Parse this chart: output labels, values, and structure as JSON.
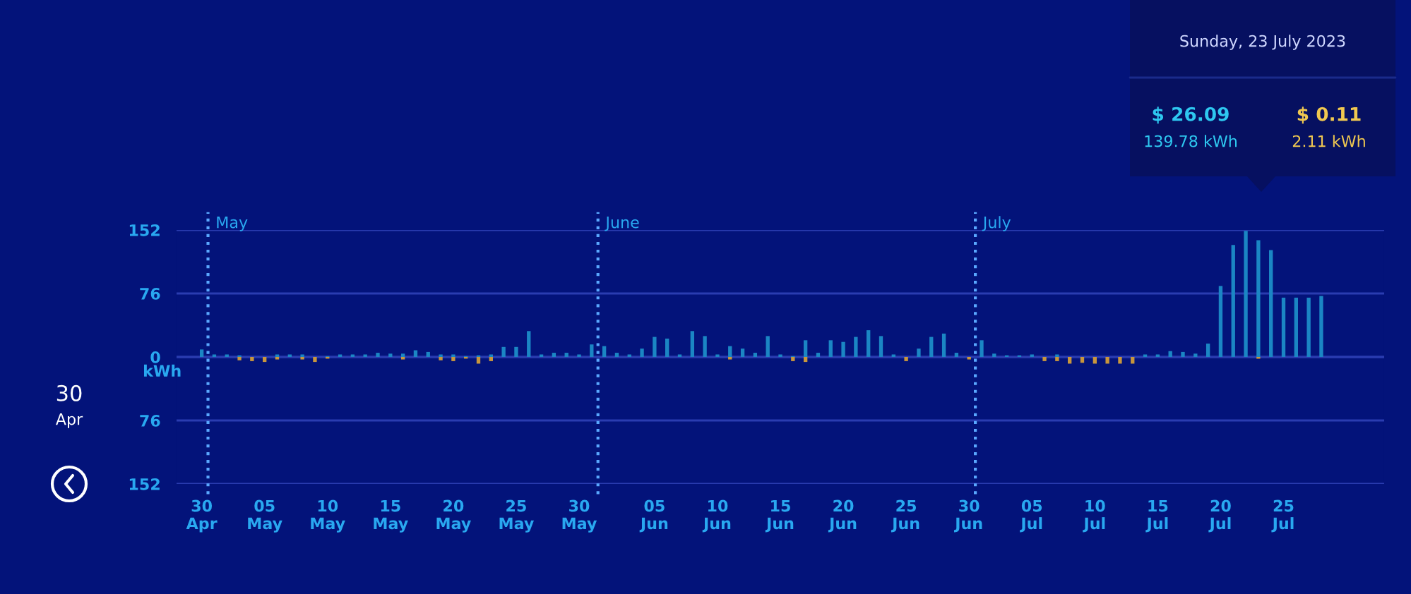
{
  "chart_data": {
    "type": "bar",
    "ylabel": "kWh",
    "x": [
      "2023-04-30",
      "2023-05-01",
      "2023-05-02",
      "2023-05-03",
      "2023-05-04",
      "2023-05-05",
      "2023-05-06",
      "2023-05-07",
      "2023-05-08",
      "2023-05-09",
      "2023-05-10",
      "2023-05-11",
      "2023-05-12",
      "2023-05-13",
      "2023-05-14",
      "2023-05-15",
      "2023-05-16",
      "2023-05-17",
      "2023-05-18",
      "2023-05-19",
      "2023-05-20",
      "2023-05-21",
      "2023-05-22",
      "2023-05-23",
      "2023-05-24",
      "2023-05-25",
      "2023-05-26",
      "2023-05-27",
      "2023-05-28",
      "2023-05-29",
      "2023-05-30",
      "2023-05-31",
      "2023-06-01",
      "2023-06-02",
      "2023-06-03",
      "2023-06-04",
      "2023-06-05",
      "2023-06-06",
      "2023-06-07",
      "2023-06-08",
      "2023-06-09",
      "2023-06-10",
      "2023-06-11",
      "2023-06-12",
      "2023-06-13",
      "2023-06-14",
      "2023-06-15",
      "2023-06-16",
      "2023-06-17",
      "2023-06-18",
      "2023-06-19",
      "2023-06-20",
      "2023-06-21",
      "2023-06-22",
      "2023-06-23",
      "2023-06-24",
      "2023-06-25",
      "2023-06-26",
      "2023-06-27",
      "2023-06-28",
      "2023-06-29",
      "2023-06-30",
      "2023-07-01",
      "2023-07-02",
      "2023-07-03",
      "2023-07-04",
      "2023-07-05",
      "2023-07-06",
      "2023-07-07",
      "2023-07-08",
      "2023-07-09",
      "2023-07-10",
      "2023-07-11",
      "2023-07-12",
      "2023-07-13",
      "2023-07-14",
      "2023-07-15",
      "2023-07-16",
      "2023-07-17",
      "2023-07-18",
      "2023-07-19",
      "2023-07-20",
      "2023-07-21",
      "2023-07-22",
      "2023-07-23",
      "2023-07-24",
      "2023-07-25",
      "2023-07-26",
      "2023-07-27",
      "2023-07-28"
    ],
    "series": [
      {
        "color": "#1b86c4",
        "values": [
          9,
          3,
          3,
          2,
          null,
          null,
          3,
          3,
          3,
          null,
          1,
          3,
          3,
          3,
          5,
          4,
          4,
          8,
          6,
          3,
          3,
          1,
          2,
          3,
          12,
          12,
          31,
          3,
          5,
          5,
          3,
          15,
          13,
          5,
          3,
          10,
          24,
          22,
          3,
          31,
          25,
          3,
          13,
          10,
          5,
          25,
          3,
          1,
          20,
          5,
          20,
          18,
          24,
          32,
          25,
          3,
          null,
          10,
          24,
          28,
          5,
          null,
          20,
          4,
          2,
          2,
          3,
          null,
          3,
          null,
          null,
          null,
          null,
          null,
          null,
          3,
          3,
          7,
          6,
          4,
          16,
          85,
          134,
          151,
          139.78,
          128,
          71,
          71,
          71,
          73
        ]
      },
      {
        "color": "#c8963c",
        "values": [
          null,
          null,
          null,
          -4,
          -5,
          -6,
          -3,
          null,
          -3,
          -6,
          -2,
          null,
          null,
          null,
          null,
          null,
          -3,
          null,
          null,
          -4,
          -5,
          -2,
          -8,
          -5,
          null,
          null,
          null,
          null,
          null,
          null,
          null,
          null,
          null,
          null,
          null,
          null,
          null,
          null,
          null,
          null,
          null,
          null,
          -3,
          null,
          null,
          null,
          null,
          -5,
          -6,
          null,
          null,
          null,
          null,
          null,
          null,
          null,
          -5,
          null,
          null,
          null,
          null,
          -3,
          null,
          null,
          null,
          null,
          null,
          -5,
          -5,
          -8,
          -7,
          -8,
          -8,
          -8,
          -8,
          null,
          null,
          null,
          null,
          null,
          null,
          null,
          null,
          null,
          -2.11,
          null,
          null,
          null,
          null,
          null
        ]
      }
    ],
    "xlim": [
      "2023-04-28",
      "2023-08-02"
    ],
    "xticks": [
      {
        "value": "2023-04-30",
        "label": "30\nApr"
      },
      {
        "value": "2023-05-05",
        "label": "05\nMay"
      },
      {
        "value": "2023-05-10",
        "label": "10\nMay"
      },
      {
        "value": "2023-05-15",
        "label": "15\nMay"
      },
      {
        "value": "2023-05-20",
        "label": "20\nMay"
      },
      {
        "value": "2023-05-25",
        "label": "25\nMay"
      },
      {
        "value": "2023-05-30",
        "label": "30\nMay"
      },
      {
        "value": "2023-06-05",
        "label": "05\nJun"
      },
      {
        "value": "2023-06-10",
        "label": "10\nJun"
      },
      {
        "value": "2023-06-15",
        "label": "15\nJun"
      },
      {
        "value": "2023-06-20",
        "label": "20\nJun"
      },
      {
        "value": "2023-06-25",
        "label": "25\nJun"
      },
      {
        "value": "2023-06-30",
        "label": "30\nJun"
      },
      {
        "value": "2023-07-05",
        "label": "05\nJul"
      },
      {
        "value": "2023-07-10",
        "label": "10\nJul"
      },
      {
        "value": "2023-07-15",
        "label": "15\nJul"
      },
      {
        "value": "2023-07-20",
        "label": "20\nJul"
      },
      {
        "value": "2023-07-25",
        "label": "25\nJul"
      }
    ],
    "ylim": [
      -152,
      152
    ],
    "yticks": [
      {
        "value": -152,
        "label": "152"
      },
      {
        "value": -76,
        "label": "76"
      },
      0,
      76,
      152
    ],
    "grid": "y",
    "ref_lines": [
      {
        "axis": "x",
        "value": "2023-04-30T12:00",
        "label": "May",
        "color": "#5aa8ff",
        "line_style": "dotted"
      },
      {
        "axis": "x",
        "value": "2023-05-31T12:00",
        "label": "June",
        "color": "#5aa8ff",
        "line_style": "dotted"
      },
      {
        "axis": "x",
        "value": "2023-06-30T12:00",
        "label": "July",
        "color": "#5aa8ff",
        "line_style": "dotted"
      }
    ],
    "annotations": [
      "Sunday, 23 July 2023",
      "$ 26.09",
      "139.78 kWh",
      "$ 0.11",
      "2.11 kWh",
      "30",
      "Apr"
    ]
  }
}
